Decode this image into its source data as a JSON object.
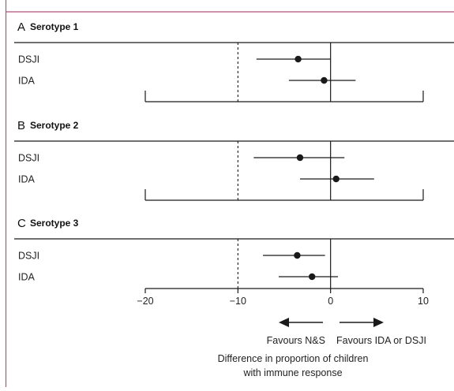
{
  "colors": {
    "frame": "#b5527a",
    "ink": "#1a1a1a"
  },
  "chart_data": [
    {
      "type": "forest",
      "panel_letter": "A",
      "title": "Serotype 1",
      "rows": [
        {
          "label": "DSJI",
          "estimate": -3.5,
          "ci": [
            -8,
            0
          ]
        },
        {
          "label": "IDA",
          "estimate": -0.7,
          "ci": [
            -4.5,
            2.7
          ]
        }
      ],
      "xlim": [
        -20,
        10
      ],
      "xticks": [
        -20,
        -10,
        0,
        10
      ],
      "reference_lines": {
        "null": 0,
        "dashed": -10
      }
    },
    {
      "type": "forest",
      "panel_letter": "B",
      "title": "Serotype 2",
      "rows": [
        {
          "label": "DSJI",
          "estimate": -3.3,
          "ci": [
            -8.3,
            1.5
          ]
        },
        {
          "label": "IDA",
          "estimate": 0.6,
          "ci": [
            -3.3,
            4.7
          ]
        }
      ],
      "xlim": [
        -20,
        10
      ],
      "xticks": [
        -20,
        -10,
        0,
        10
      ],
      "reference_lines": {
        "null": 0,
        "dashed": -10
      }
    },
    {
      "type": "forest",
      "panel_letter": "C",
      "title": "Serotype 3",
      "rows": [
        {
          "label": "DSJI",
          "estimate": -3.6,
          "ci": [
            -7.3,
            -0.6
          ]
        },
        {
          "label": "IDA",
          "estimate": -2.0,
          "ci": [
            -5.6,
            0.8
          ]
        }
      ],
      "xlim": [
        -20,
        10
      ],
      "xticks": [
        -20,
        -10,
        0,
        10
      ],
      "tick_labels": [
        "−20",
        "−10",
        "0",
        "10"
      ],
      "reference_lines": {
        "null": 0,
        "dashed": -10
      }
    }
  ],
  "favours": {
    "left": "Favours N&S",
    "right": "Favours IDA or DSJI"
  },
  "xlabel": {
    "line1": "Difference in proportion of children",
    "line2": "with immune response"
  }
}
